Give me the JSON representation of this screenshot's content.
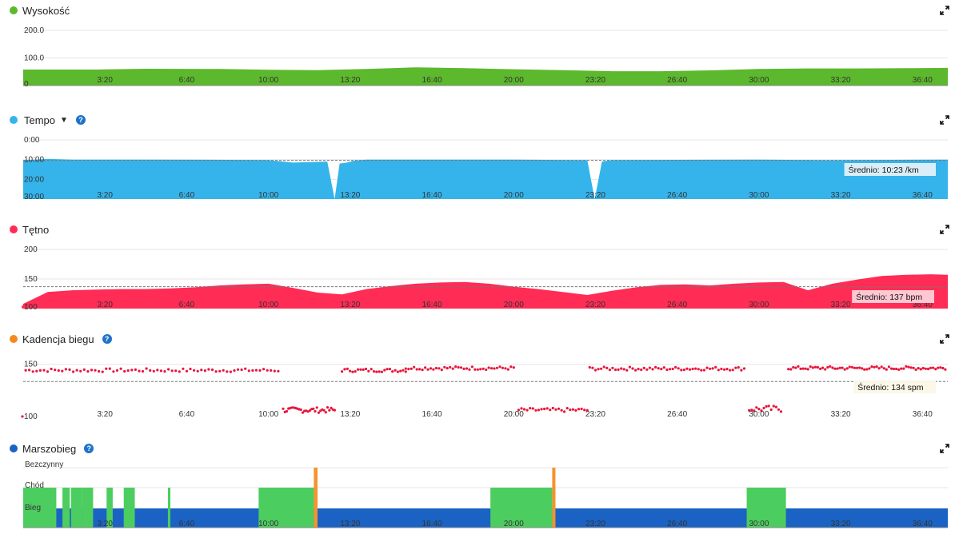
{
  "colors": {
    "elevation": "#5cb82c",
    "pace": "#34b4eb",
    "heart_rate": "#ff2c55",
    "cadence_dot": "#e8163c",
    "cadence_icon": "#f5891f",
    "run": "#1a63c4",
    "walk": "#4ccd5f",
    "idle": "#f7922e",
    "help": "#1f73c9"
  },
  "x_ticks": [
    "3:20",
    "6:40",
    "10:00",
    "13:20",
    "16:40",
    "20:00",
    "23:20",
    "26:40",
    "30:00",
    "33:20",
    "36:40"
  ],
  "panels": {
    "elevation": {
      "title": "Wysokość",
      "icon": "green-dot-icon",
      "expand_icon": "expand-icon"
    },
    "pace": {
      "title": "Tempo",
      "dropdown_icon": "caret-down-icon",
      "help": "?",
      "average": "Średnio: 10:23 /km"
    },
    "heart_rate": {
      "title": "Tętno",
      "average": "Średnio: 137 bpm"
    },
    "cadence": {
      "title": "Kadencja biegu",
      "help": "?",
      "average": "Średnio: 134 spm"
    },
    "run_walk": {
      "title": "Marszobieg",
      "help": "?"
    }
  },
  "chart_data": [
    {
      "type": "area",
      "name": "elevation",
      "ylabel": "",
      "y_ticks": [
        "200.0",
        "100.0",
        "0"
      ],
      "ylim": [
        0,
        200
      ],
      "x_minutes": [
        0,
        3,
        5,
        8,
        10,
        12,
        14,
        16,
        18,
        20,
        22,
        24,
        26,
        28,
        30,
        32,
        34,
        36,
        37.7
      ],
      "values": [
        58,
        58,
        61,
        60,
        57,
        56,
        60,
        66,
        63,
        59,
        56,
        52,
        52,
        55,
        60,
        62,
        62,
        63,
        64
      ]
    },
    {
      "type": "area",
      "name": "pace",
      "inverted": true,
      "y_ticks": [
        "0:00",
        "10:00",
        "20:00",
        "30:00"
      ],
      "ylim_minutes_per_km": [
        0,
        30
      ],
      "average_minutes_per_km": 10.38,
      "x_minutes": [
        0,
        0.5,
        1,
        2,
        5,
        10,
        11,
        12.4,
        12.7,
        12.9,
        13.2,
        13.5,
        14,
        20,
        23,
        23.3,
        23.6,
        24,
        30,
        33,
        37.7
      ],
      "values": [
        10.3,
        10,
        9.6,
        10,
        10,
        10.2,
        11.5,
        11,
        30,
        12,
        11.5,
        10.5,
        10,
        10,
        10.3,
        30,
        11,
        10.2,
        10,
        10.3,
        10
      ]
    },
    {
      "type": "area",
      "name": "heart_rate",
      "y_ticks": [
        "200",
        "150",
        "100"
      ],
      "ylim": [
        100,
        200
      ],
      "average": 137,
      "x_minutes": [
        0,
        1,
        2,
        3,
        4,
        5,
        6,
        7,
        8,
        9,
        10,
        11,
        12,
        13,
        14,
        15,
        16,
        17,
        18,
        19,
        20,
        21,
        22,
        23,
        24,
        25,
        26,
        27,
        28,
        29,
        30,
        31,
        32,
        33,
        34,
        35,
        36,
        37,
        37.7
      ],
      "values": [
        108,
        128,
        131,
        132,
        133,
        133,
        134,
        136,
        139,
        141,
        142,
        135,
        127,
        124,
        133,
        138,
        142,
        144,
        145,
        142,
        137,
        133,
        128,
        123,
        130,
        136,
        140,
        141,
        139,
        142,
        144,
        145,
        131,
        142,
        149,
        155,
        157,
        158,
        157
      ]
    },
    {
      "type": "scatter",
      "name": "cadence",
      "y_ticks": [
        "150",
        "100"
      ],
      "ylim": [
        100,
        155
      ],
      "average": 134,
      "segments": [
        {
          "x_range": [
            0.1,
            10.4
          ],
          "level": 144.5,
          "jitter": 1.6,
          "count": 70
        },
        {
          "x_range": [
            10.6,
            12.7
          ],
          "level": 107.5,
          "jitter": 2.5,
          "count": 30
        },
        {
          "x_range": [
            13.0,
            15.6
          ],
          "level": 144.5,
          "jitter": 1.6,
          "count": 25
        },
        {
          "x_range": [
            15.6,
            20.0
          ],
          "level": 146.5,
          "jitter": 1.6,
          "count": 40
        },
        {
          "x_range": [
            20.2,
            23.0
          ],
          "level": 107.5,
          "jitter": 1.8,
          "count": 25
        },
        {
          "x_range": [
            23.1,
            29.4
          ],
          "level": 146,
          "jitter": 1.6,
          "count": 55
        },
        {
          "x_range": [
            29.6,
            30.9
          ],
          "level": 108.5,
          "jitter": 3,
          "count": 14
        },
        {
          "x_range": [
            31.2,
            37.6
          ],
          "level": 146.5,
          "jitter": 1.6,
          "count": 65
        }
      ]
    },
    {
      "type": "bar",
      "name": "run_walk",
      "y_categories": [
        "Bezczynny",
        "Chód",
        "Bieg"
      ],
      "x_max_minutes": 37.7,
      "walk_intervals": [
        [
          0,
          1.35
        ],
        [
          1.6,
          1.9
        ],
        [
          1.95,
          2.4
        ],
        [
          2.4,
          2.85
        ],
        [
          3.4,
          3.65
        ],
        [
          4.1,
          4.55
        ],
        [
          5.9,
          6.0
        ],
        [
          9.6,
          11.85
        ],
        [
          11.85,
          11.95
        ],
        [
          11.95,
          12.0
        ],
        [
          12.0,
          12.0
        ],
        [
          19.05,
          21.57
        ],
        [
          21.57,
          21.65
        ],
        [
          21.65,
          21.7
        ],
        [
          21.7,
          21.7
        ],
        [
          29.5,
          31.1
        ]
      ],
      "idle_intervals": [
        [
          11.85,
          12.0
        ],
        [
          21.57,
          21.7
        ]
      ]
    }
  ]
}
